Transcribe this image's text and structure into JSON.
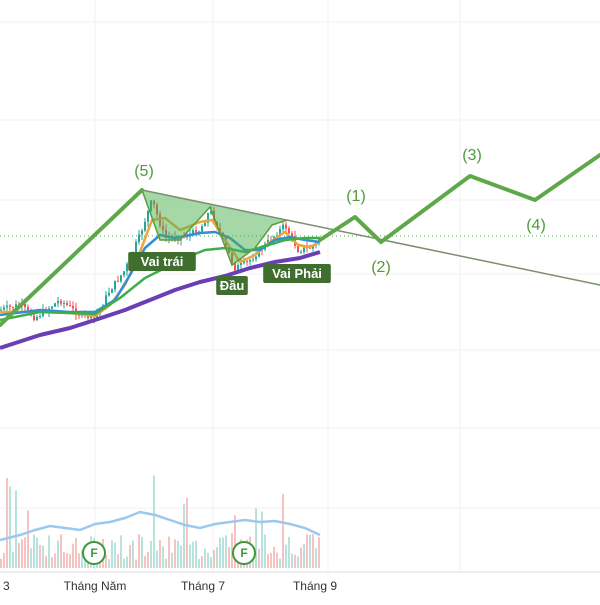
{
  "chart_data": {
    "type": "candlestick",
    "x_ticks": [
      "3",
      "Tháng Năm",
      "Tháng 7",
      "Tháng 9"
    ],
    "pattern": {
      "name": "head-and-shoulders",
      "labels": [
        "Vai trái",
        "Đầu",
        "Vai Phải"
      ]
    },
    "wave_labels": [
      "(5)",
      "(1)",
      "(2)",
      "(3)",
      "(4)"
    ],
    "event_markers": [
      "F",
      "F"
    ],
    "series": [
      {
        "name": "",
        "color": "#f0a53a"
      },
      {
        "name": "",
        "color": "#2f8fd8"
      },
      {
        "name": "",
        "color": "#3fae4a"
      },
      {
        "name": "",
        "color": "#6a3fb5"
      }
    ],
    "volume_ma_color": "#9cc8ee",
    "up_color": "#26a69a",
    "down_color": "#ef5350",
    "grid": true
  }
}
